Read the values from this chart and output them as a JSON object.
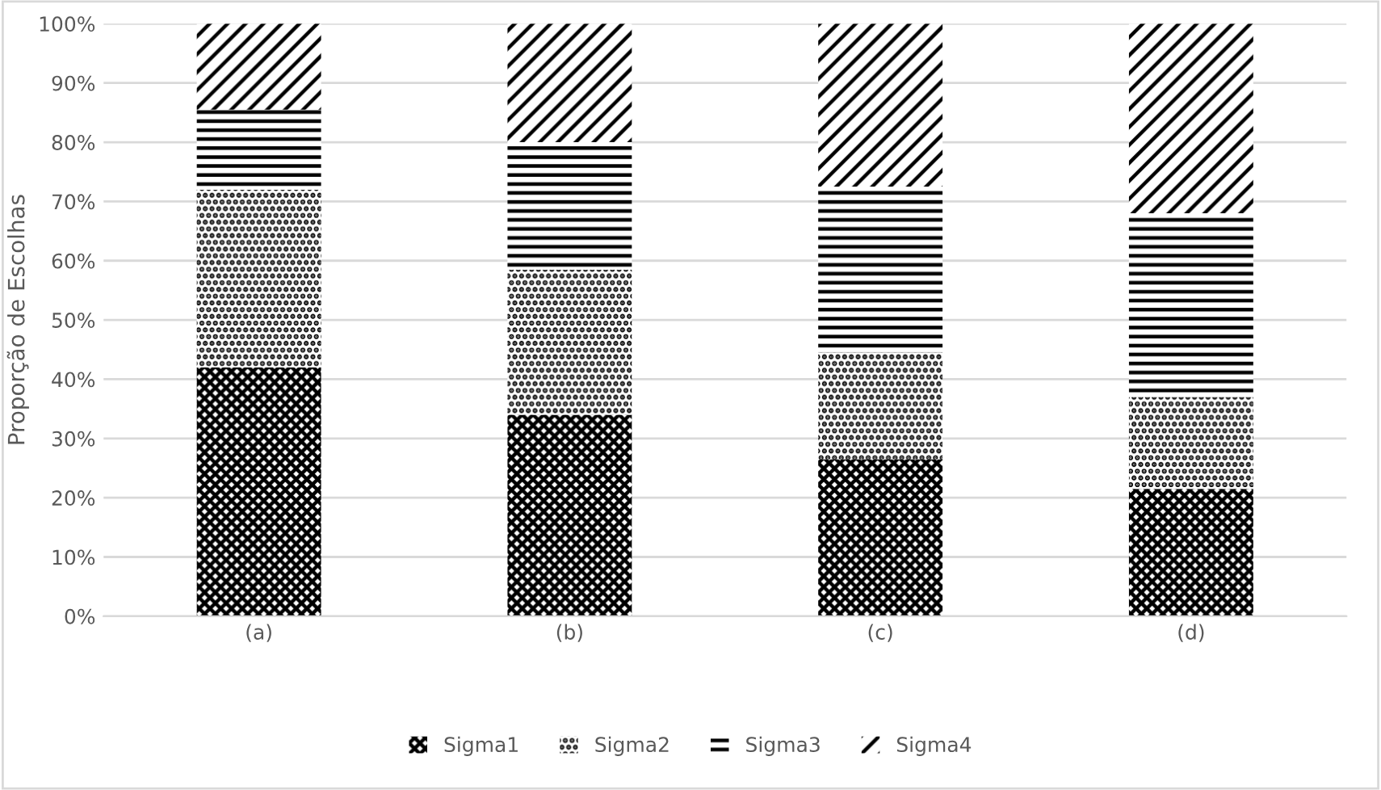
{
  "chart_data": {
    "type": "bar",
    "stacked": true,
    "ylabel": "Proporção de Escolhas",
    "categories": [
      "(a)",
      "(b)",
      "(c)",
      "(d)"
    ],
    "series": [
      {
        "name": "Sigma1",
        "color": "#000000",
        "values": [
          42,
          34,
          26.5,
          21.5
        ]
      },
      {
        "name": "Sigma2",
        "color": "#000000",
        "values": [
          30,
          24.5,
          18,
          15.5
        ]
      },
      {
        "name": "Sigma3",
        "color": "#000000",
        "values": [
          13.5,
          21.5,
          28,
          31
        ]
      },
      {
        "name": "Sigma4",
        "color": "#000000",
        "values": [
          14.5,
          20,
          27.5,
          32
        ]
      }
    ],
    "ylim": [
      0,
      100
    ],
    "yticks": [
      {
        "value": 0,
        "label": "0%"
      },
      {
        "value": 10,
        "label": "10%"
      },
      {
        "value": 20,
        "label": "20%"
      },
      {
        "value": 30,
        "label": "30%"
      },
      {
        "value": 40,
        "label": "40%"
      },
      {
        "value": 50,
        "label": "50%"
      },
      {
        "value": 60,
        "label": "60%"
      },
      {
        "value": 70,
        "label": "70%"
      },
      {
        "value": 80,
        "label": "80%"
      },
      {
        "value": 90,
        "label": "90%"
      },
      {
        "value": 100,
        "label": "100%"
      }
    ],
    "grid": "y",
    "legend": "bottom"
  }
}
